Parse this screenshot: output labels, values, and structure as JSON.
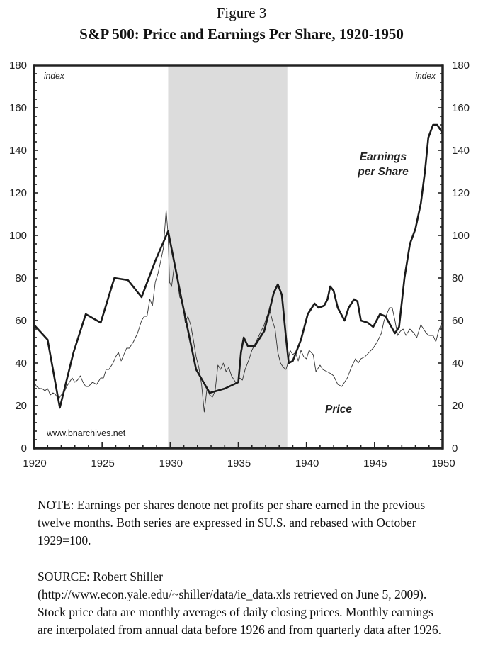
{
  "figure": {
    "number": "Figure 3",
    "title": "S&P 500: Price and Earnings Per Share, 1920-1950"
  },
  "chart_data": {
    "type": "line",
    "title": "S&P 500: Price and Earnings Per Share, 1920-1950",
    "xlabel": "",
    "ylabel": "index",
    "ylabel_right": "index",
    "xlim": [
      1920,
      1950
    ],
    "ylim": [
      0,
      180
    ],
    "x_ticks": [
      "1920",
      "1925",
      "1930",
      "1935",
      "1940",
      "1945",
      "1950"
    ],
    "y_ticks": [
      "0",
      "20",
      "40",
      "60",
      "80",
      "100",
      "120",
      "140",
      "160",
      "180"
    ],
    "grid": false,
    "shaded_region": {
      "from": 1929.85,
      "to": 1938.6,
      "color": "#dcdcdc"
    },
    "watermark": "www.bnarchives.net",
    "series": [
      {
        "name": "Earnings per Share",
        "label": [
          "Earnings",
          "per Share"
        ],
        "style": "thick",
        "color": "#1a1a1a",
        "points": [
          [
            1920.0,
            58
          ],
          [
            1921.0,
            51
          ],
          [
            1921.9,
            19
          ],
          [
            1922.9,
            45
          ],
          [
            1923.8,
            63
          ],
          [
            1924.9,
            59
          ],
          [
            1925.9,
            80
          ],
          [
            1926.9,
            79
          ],
          [
            1927.9,
            71
          ],
          [
            1928.9,
            88
          ],
          [
            1929.85,
            102
          ],
          [
            1930.8,
            71
          ],
          [
            1931.9,
            37
          ],
          [
            1932.9,
            26
          ],
          [
            1934.0,
            28
          ],
          [
            1935.0,
            31
          ],
          [
            1935.2,
            45
          ],
          [
            1935.4,
            52
          ],
          [
            1935.7,
            48
          ],
          [
            1936.2,
            48
          ],
          [
            1936.9,
            55
          ],
          [
            1937.3,
            65
          ],
          [
            1937.6,
            73
          ],
          [
            1937.9,
            77
          ],
          [
            1938.2,
            72
          ],
          [
            1938.5,
            52
          ],
          [
            1938.7,
            40
          ],
          [
            1939.0,
            41
          ],
          [
            1939.6,
            51
          ],
          [
            1940.1,
            63
          ],
          [
            1940.6,
            68
          ],
          [
            1940.9,
            66
          ],
          [
            1941.3,
            67
          ],
          [
            1941.55,
            70
          ],
          [
            1941.75,
            76
          ],
          [
            1942.0,
            74
          ],
          [
            1942.3,
            66
          ],
          [
            1942.8,
            60
          ],
          [
            1943.1,
            66
          ],
          [
            1943.5,
            70
          ],
          [
            1943.75,
            69
          ],
          [
            1944.0,
            60
          ],
          [
            1944.5,
            59
          ],
          [
            1944.9,
            57
          ],
          [
            1945.4,
            63
          ],
          [
            1945.8,
            62
          ],
          [
            1946.5,
            54
          ],
          [
            1946.8,
            57
          ],
          [
            1947.2,
            80
          ],
          [
            1947.6,
            96
          ],
          [
            1948.0,
            103
          ],
          [
            1948.4,
            115
          ],
          [
            1948.7,
            130
          ],
          [
            1948.95,
            146
          ],
          [
            1949.3,
            152
          ],
          [
            1949.6,
            152
          ],
          [
            1949.8,
            150
          ],
          [
            1950.0,
            148
          ]
        ]
      },
      {
        "name": "Price",
        "label": [
          "Price"
        ],
        "style": "thin",
        "color": "#333333",
        "points": [
          [
            1920.0,
            31
          ],
          [
            1920.2,
            29
          ],
          [
            1920.4,
            28
          ],
          [
            1920.6,
            28
          ],
          [
            1920.8,
            27
          ],
          [
            1921.0,
            28
          ],
          [
            1921.2,
            25
          ],
          [
            1921.4,
            26
          ],
          [
            1921.6,
            25
          ],
          [
            1921.8,
            23
          ],
          [
            1922.0,
            25
          ],
          [
            1922.2,
            26
          ],
          [
            1922.4,
            29
          ],
          [
            1922.6,
            31
          ],
          [
            1922.8,
            33
          ],
          [
            1923.0,
            31
          ],
          [
            1923.2,
            32
          ],
          [
            1923.4,
            34
          ],
          [
            1923.6,
            31
          ],
          [
            1923.8,
            29
          ],
          [
            1924.0,
            29
          ],
          [
            1924.3,
            31
          ],
          [
            1924.6,
            30
          ],
          [
            1924.9,
            33
          ],
          [
            1925.1,
            33
          ],
          [
            1925.3,
            37
          ],
          [
            1925.5,
            37
          ],
          [
            1925.8,
            40
          ],
          [
            1926.0,
            43
          ],
          [
            1926.2,
            45
          ],
          [
            1926.4,
            41
          ],
          [
            1926.6,
            44
          ],
          [
            1926.8,
            47
          ],
          [
            1927.0,
            47
          ],
          [
            1927.3,
            50
          ],
          [
            1927.6,
            54
          ],
          [
            1927.9,
            60
          ],
          [
            1928.1,
            62
          ],
          [
            1928.3,
            62
          ],
          [
            1928.5,
            70
          ],
          [
            1928.7,
            67
          ],
          [
            1928.9,
            78
          ],
          [
            1929.1,
            82
          ],
          [
            1929.3,
            88
          ],
          [
            1929.5,
            94
          ],
          [
            1929.7,
            112
          ],
          [
            1929.85,
            100
          ],
          [
            1929.95,
            78
          ],
          [
            1930.1,
            76
          ],
          [
            1930.3,
            86
          ],
          [
            1930.5,
            80
          ],
          [
            1930.7,
            71
          ],
          [
            1930.9,
            69
          ],
          [
            1931.1,
            59
          ],
          [
            1931.3,
            62
          ],
          [
            1931.5,
            58
          ],
          [
            1931.7,
            51
          ],
          [
            1931.9,
            43
          ],
          [
            1932.1,
            38
          ],
          [
            1932.3,
            30
          ],
          [
            1932.5,
            17
          ],
          [
            1932.7,
            28
          ],
          [
            1932.9,
            25
          ],
          [
            1933.1,
            24
          ],
          [
            1933.3,
            27
          ],
          [
            1933.5,
            39
          ],
          [
            1933.7,
            37
          ],
          [
            1933.9,
            40
          ],
          [
            1934.1,
            36
          ],
          [
            1934.3,
            38
          ],
          [
            1934.5,
            34
          ],
          [
            1934.7,
            32
          ],
          [
            1934.9,
            30
          ],
          [
            1935.1,
            33
          ],
          [
            1935.3,
            32
          ],
          [
            1935.5,
            37
          ],
          [
            1935.8,
            42
          ],
          [
            1936.0,
            46
          ],
          [
            1936.3,
            50
          ],
          [
            1936.6,
            54
          ],
          [
            1936.9,
            58
          ],
          [
            1937.1,
            62
          ],
          [
            1937.3,
            65
          ],
          [
            1937.5,
            60
          ],
          [
            1937.7,
            56
          ],
          [
            1937.9,
            45
          ],
          [
            1938.1,
            40
          ],
          [
            1938.3,
            38
          ],
          [
            1938.5,
            37
          ],
          [
            1938.6,
            39
          ],
          [
            1938.8,
            46
          ],
          [
            1939.0,
            44
          ],
          [
            1939.2,
            45
          ],
          [
            1939.4,
            41
          ],
          [
            1939.6,
            46
          ],
          [
            1939.8,
            43
          ],
          [
            1940.0,
            42
          ],
          [
            1940.2,
            46
          ],
          [
            1940.5,
            44
          ],
          [
            1940.7,
            36
          ],
          [
            1941.0,
            39
          ],
          [
            1941.2,
            37
          ],
          [
            1941.5,
            36
          ],
          [
            1941.8,
            35
          ],
          [
            1942.0,
            34
          ],
          [
            1942.3,
            30
          ],
          [
            1942.6,
            29
          ],
          [
            1942.8,
            31
          ],
          [
            1943.0,
            33
          ],
          [
            1943.3,
            38
          ],
          [
            1943.6,
            42
          ],
          [
            1943.8,
            40
          ],
          [
            1944.0,
            42
          ],
          [
            1944.3,
            43
          ],
          [
            1944.6,
            45
          ],
          [
            1944.9,
            47
          ],
          [
            1945.2,
            50
          ],
          [
            1945.5,
            54
          ],
          [
            1945.7,
            60
          ],
          [
            1945.9,
            63
          ],
          [
            1946.1,
            66
          ],
          [
            1946.3,
            66
          ],
          [
            1946.5,
            60
          ],
          [
            1946.7,
            53
          ],
          [
            1946.9,
            55
          ],
          [
            1947.1,
            56
          ],
          [
            1947.3,
            53
          ],
          [
            1947.6,
            56
          ],
          [
            1947.9,
            54
          ],
          [
            1948.1,
            52
          ],
          [
            1948.4,
            58
          ],
          [
            1948.6,
            56
          ],
          [
            1948.8,
            54
          ],
          [
            1949.0,
            53
          ],
          [
            1949.3,
            53
          ],
          [
            1949.5,
            50
          ],
          [
            1949.7,
            55
          ],
          [
            1950.0,
            60
          ]
        ]
      }
    ]
  },
  "notes": {
    "note": "NOTE: Earnings per shares denote net profits per share earned in the previous twelve months. Both series are expressed in $U.S. and rebased with October 1929=100.",
    "source_line1": "SOURCE: Robert Shiller",
    "source_rest": "(http://www.econ.yale.edu/~shiller/data/ie_data.xls retrieved on June 5, 2009). Stock price data are monthly averages of daily closing prices. Monthly earnings are interpolated from annual data before 1926 and from quarterly data after 1926."
  }
}
